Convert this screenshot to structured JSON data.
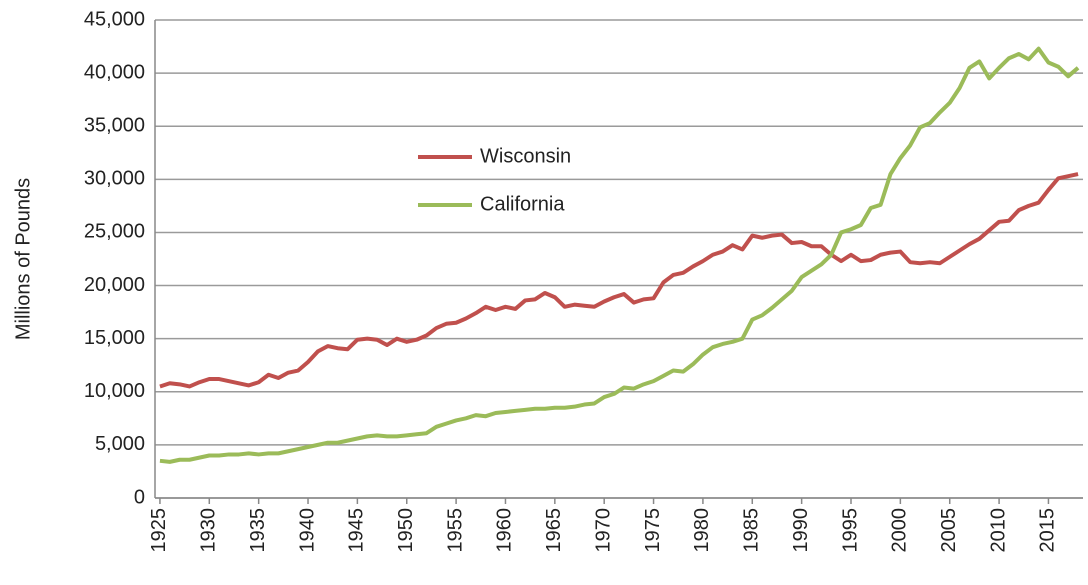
{
  "chart_data": {
    "type": "line",
    "y_label": "Millions of Pounds",
    "x": [
      1925,
      1926,
      1927,
      1928,
      1929,
      1930,
      1931,
      1932,
      1933,
      1934,
      1935,
      1936,
      1937,
      1938,
      1939,
      1940,
      1941,
      1942,
      1943,
      1944,
      1945,
      1946,
      1947,
      1948,
      1949,
      1950,
      1951,
      1952,
      1953,
      1954,
      1955,
      1956,
      1957,
      1958,
      1959,
      1960,
      1961,
      1962,
      1963,
      1964,
      1965,
      1966,
      1967,
      1968,
      1969,
      1970,
      1971,
      1972,
      1973,
      1974,
      1975,
      1976,
      1977,
      1978,
      1979,
      1980,
      1981,
      1982,
      1983,
      1984,
      1985,
      1986,
      1987,
      1988,
      1989,
      1990,
      1991,
      1992,
      1993,
      1994,
      1995,
      1996,
      1997,
      1998,
      1999,
      2000,
      2001,
      2002,
      2003,
      2004,
      2005,
      2006,
      2007,
      2008,
      2009,
      2010,
      2011,
      2012,
      2013,
      2014,
      2015,
      2016,
      2017,
      2018
    ],
    "series": [
      {
        "name": "Wisconsin",
        "color": "#c0504d",
        "values": [
          10500,
          10800,
          10700,
          10500,
          10900,
          11200,
          11200,
          11000,
          10800,
          10600,
          10900,
          11600,
          11300,
          11800,
          12000,
          12800,
          13800,
          14300,
          14100,
          14000,
          14900,
          15000,
          14900,
          14400,
          15000,
          14700,
          14900,
          15300,
          16000,
          16400,
          16500,
          16900,
          17400,
          18000,
          17700,
          18000,
          17800,
          18600,
          18700,
          19300,
          18900,
          18000,
          18200,
          18100,
          18000,
          18500,
          18900,
          19200,
          18400,
          18700,
          18800,
          20300,
          21000,
          21200,
          21800,
          22300,
          22900,
          23200,
          23800,
          23400,
          24700,
          24500,
          24700,
          24800,
          24000,
          24100,
          23700,
          23700,
          22900,
          22300,
          22900,
          22300,
          22400,
          22900,
          23100,
          23200,
          22200,
          22100,
          22200,
          22100,
          22700,
          23300,
          23900,
          24400,
          25200,
          26000,
          26100,
          27100,
          27500,
          27800,
          29000,
          30100,
          30300,
          30500
        ]
      },
      {
        "name": "California",
        "color": "#9bbb59",
        "values": [
          3500,
          3400,
          3600,
          3600,
          3800,
          4000,
          4000,
          4100,
          4100,
          4200,
          4100,
          4200,
          4200,
          4400,
          4600,
          4800,
          5000,
          5200,
          5200,
          5400,
          5600,
          5800,
          5900,
          5800,
          5800,
          5900,
          6000,
          6100,
          6700,
          7000,
          7300,
          7500,
          7800,
          7700,
          8000,
          8100,
          8200,
          8300,
          8400,
          8400,
          8500,
          8500,
          8600,
          8800,
          8900,
          9500,
          9800,
          10400,
          10300,
          10700,
          11000,
          11500,
          12000,
          11900,
          12600,
          13500,
          14200,
          14500,
          14700,
          15000,
          16800,
          17200,
          17900,
          18700,
          19500,
          20800,
          21400,
          22000,
          22900,
          25000,
          25300,
          25700,
          27300,
          27600,
          30500,
          32000,
          33200,
          34900,
          35300,
          36300,
          37200,
          38600,
          40500,
          41100,
          39500,
          40500,
          41400,
          41800,
          41300,
          42300,
          41000,
          40600,
          39700,
          40500
        ]
      }
    ],
    "xlim": [
      1924.5,
      2018.5
    ],
    "xticks": [
      1925,
      1930,
      1935,
      1940,
      1945,
      1950,
      1955,
      1960,
      1965,
      1970,
      1975,
      1980,
      1985,
      1990,
      1995,
      2000,
      2005,
      2010,
      2015
    ],
    "ylim": [
      0,
      45000
    ],
    "yticks": [
      0,
      {
        "value": 5000,
        "label": "5,000"
      },
      {
        "value": 10000,
        "label": "10,000"
      },
      {
        "value": 15000,
        "label": "15,000"
      },
      {
        "value": 20000,
        "label": "20,000"
      },
      {
        "value": 25000,
        "label": "25,000"
      },
      {
        "value": 30000,
        "label": "30,000"
      },
      {
        "value": 35000,
        "label": "35,000"
      },
      {
        "value": 40000,
        "label": "40,000"
      },
      {
        "value": 45000,
        "label": "45,000"
      }
    ],
    "grid": true
  }
}
